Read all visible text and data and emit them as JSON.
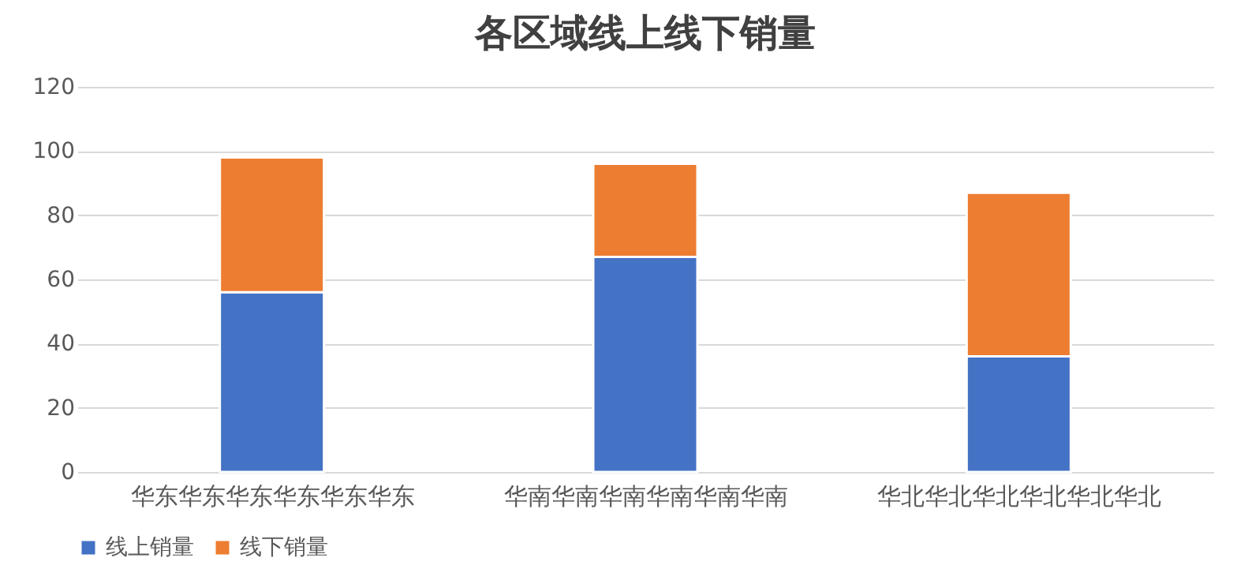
{
  "chart_data": {
    "type": "bar",
    "title": "各区域线上线下销量",
    "stacked": true,
    "categories": [
      "华东华东华东华东华东华东",
      "华南华南华南华南华南华南",
      "华北华北华北华北华北华北"
    ],
    "series": [
      {
        "name": "线上销量",
        "color": "#4472c4",
        "values": [
          56,
          67,
          36
        ]
      },
      {
        "name": "线下销量",
        "color": "#ed7d31",
        "values": [
          42,
          29,
          51
        ]
      }
    ],
    "ylim": [
      0,
      120
    ],
    "yticks": [
      0,
      20,
      40,
      60,
      80,
      100,
      120
    ],
    "grid": "y",
    "legend": "bottom"
  }
}
